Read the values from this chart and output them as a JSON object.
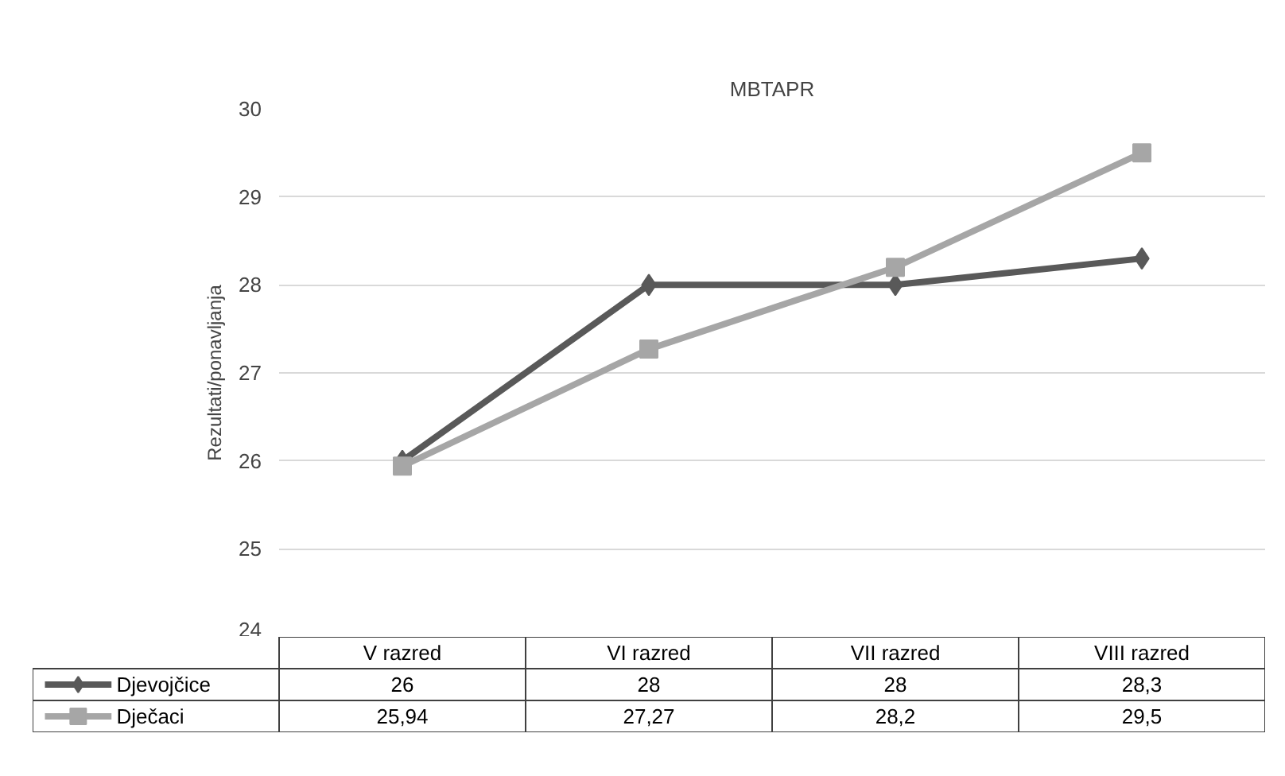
{
  "chart_data": {
    "type": "line",
    "title": "MBTAPR",
    "ylabel": "Rezultati/ponavljanja",
    "categories": [
      "V razred",
      "VI razred",
      "VII razred",
      "VIII razred"
    ],
    "series": [
      {
        "name": "Djevojčice",
        "color": "#595959",
        "marker": "diamond",
        "values": [
          26,
          28,
          28,
          28.3
        ],
        "value_labels": [
          "26",
          "28",
          "28",
          "28,3"
        ]
      },
      {
        "name": "Dječaci",
        "color": "#a6a6a6",
        "marker": "square",
        "values": [
          25.94,
          27.27,
          28.2,
          29.5
        ],
        "value_labels": [
          "25,94",
          "27,27",
          "28,2",
          "29,5"
        ]
      }
    ],
    "ylim": [
      24,
      30
    ],
    "yticks": [
      24,
      25,
      26,
      27,
      28,
      29,
      30
    ],
    "grid": "y",
    "legend": "bottom"
  }
}
